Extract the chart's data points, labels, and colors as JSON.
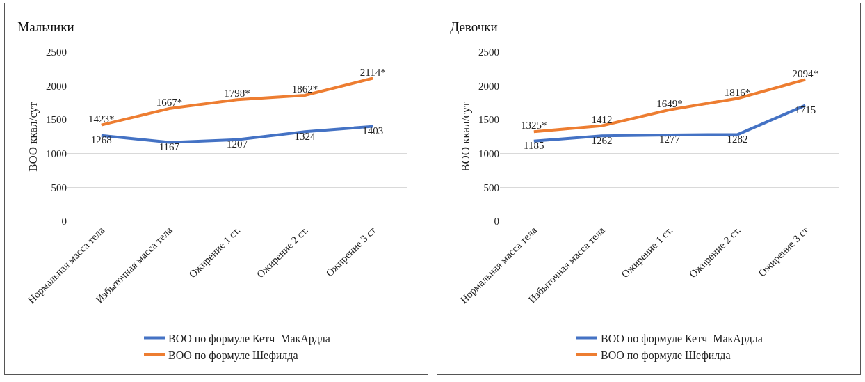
{
  "chart_data": [
    {
      "type": "line",
      "title": "Мальчики",
      "ylabel": "ВОО ккал/сут",
      "categories": [
        "Нормальная масса тела",
        "Избыточная масса тела",
        "Ожирение 1 ст.",
        "Ожирение 2 ст.",
        "Ожирение 3 ст"
      ],
      "ylim": [
        0,
        2500
      ],
      "yticks": [
        0,
        500,
        1000,
        1500,
        2000,
        2500
      ],
      "grid": "y",
      "legend": "bottom",
      "marker": "none",
      "line_style": "solid",
      "series": [
        {
          "name": "ВОО по формуле Кетч–МакАрдла",
          "color": "#4472c4",
          "values": [
            1268,
            1167,
            1207,
            1324,
            1403
          ],
          "value_labels": [
            "1268",
            "1167",
            "1207",
            "1324",
            "1403"
          ]
        },
        {
          "name": "ВОО по формуле Шефилда",
          "color": "#ed7d31",
          "values": [
            1423,
            1667,
            1798,
            1862,
            2114
          ],
          "value_labels": [
            "1423*",
            "1667*",
            "1798*",
            "1862*",
            "2114*"
          ]
        }
      ]
    },
    {
      "type": "line",
      "title": "Девочки",
      "ylabel": "ВОО ккал/сут",
      "categories": [
        "Нормальная масса тела",
        "Избыточная масса тела",
        "Ожирение 1 ст.",
        "Ожирение 2 ст.",
        "Ожирение 3 ст"
      ],
      "ylim": [
        0,
        2500
      ],
      "yticks": [
        0,
        500,
        1000,
        1500,
        2000,
        2500
      ],
      "grid": "y",
      "legend": "bottom",
      "marker": "none",
      "line_style": "solid",
      "series": [
        {
          "name": "ВОО по формуле Кетч–МакАрдла",
          "color": "#4472c4",
          "values": [
            1185,
            1262,
            1277,
            1282,
            1715
          ],
          "value_labels": [
            "1185",
            "1262",
            "1277",
            "1282",
            "1715"
          ]
        },
        {
          "name": "ВОО по формуле Шефилда",
          "color": "#ed7d31",
          "values": [
            1325,
            1412,
            1649,
            1816,
            2094
          ],
          "value_labels": [
            "1325*",
            "1412",
            "1649*",
            "1816*",
            "2094*"
          ]
        }
      ]
    }
  ]
}
